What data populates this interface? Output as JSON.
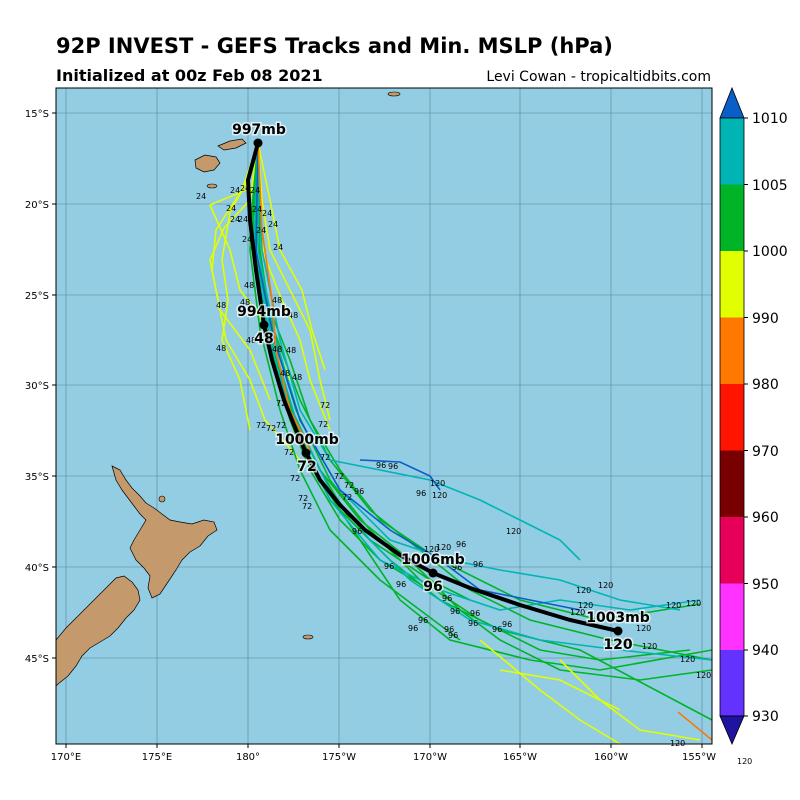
{
  "header": {
    "title": "92P INVEST - GEFS Tracks and Min. MSLP (hPa)",
    "subtitle": "Initialized at 00z Feb 08 2021",
    "credit": "Levi Cowan - tropicaltidbits.com"
  },
  "map": {
    "lon_ticks": [
      "170°E",
      "175°E",
      "180°",
      "175°W",
      "170°W",
      "165°W",
      "160°W",
      "155°W"
    ],
    "lat_ticks": [
      "15°S",
      "20°S",
      "25°S",
      "30°S",
      "35°S",
      "40°S",
      "45°S"
    ],
    "ocean_color": "#93cde3",
    "land_color": "#c49a6c"
  },
  "mean_track": {
    "markers": [
      {
        "pressure": "997mb",
        "hour": ""
      },
      {
        "pressure": "994mb",
        "hour": "48"
      },
      {
        "pressure": "1000mb",
        "hour": "72"
      },
      {
        "pressure": "1006mb",
        "hour": "96"
      },
      {
        "pressure": "1003mb",
        "hour": "120"
      }
    ]
  },
  "colorbar": {
    "labels": [
      "1010",
      "1005",
      "1000",
      "990",
      "980",
      "970",
      "960",
      "950",
      "940",
      "930"
    ],
    "colors": [
      "#0a5ec8",
      "#00b4b4",
      "#00b428",
      "#e1ff00",
      "#ff7800",
      "#ff1400",
      "#780000",
      "#e6005a",
      "#ff32ff",
      "#6432ff",
      "#1e14a0"
    ],
    "bottom_text": "120"
  }
}
